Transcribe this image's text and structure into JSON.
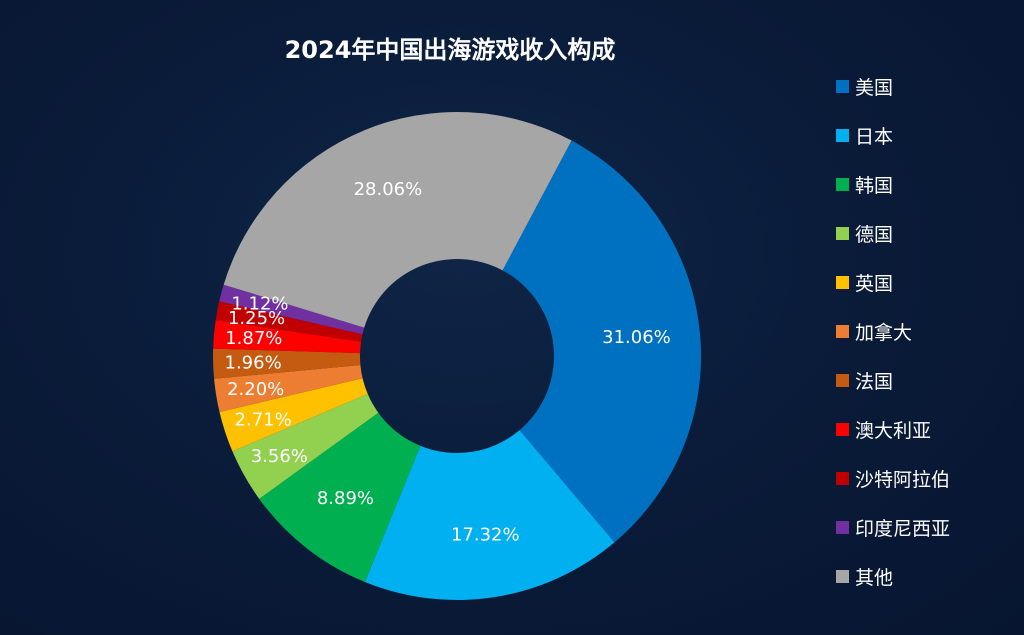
{
  "chart_data": {
    "type": "pie",
    "variant": "donut",
    "title": "2024年中国出海游戏收入构成",
    "unit": "%",
    "legend_position": "right",
    "categories": [
      "美国",
      "日本",
      "韩国",
      "德国",
      "英国",
      "加拿大",
      "法国",
      "澳大利亚",
      "沙特阿拉伯",
      "印度尼西亚",
      "其他"
    ],
    "values": [
      31.06,
      17.32,
      8.89,
      3.56,
      2.71,
      2.2,
      1.96,
      1.87,
      1.25,
      1.12,
      28.06
    ],
    "labels": [
      "31.06%",
      "17.32%",
      "8.89%",
      "3.56%",
      "2.71%",
      "2.20%",
      "1.96%",
      "1.87%",
      "1.25%",
      "1.12%",
      "28.06%"
    ],
    "colors": [
      "#0070c0",
      "#00b0f0",
      "#00b050",
      "#92d050",
      "#ffc000",
      "#ed7d31",
      "#c55a11",
      "#ff0000",
      "#c00000",
      "#7030a0",
      "#a6a6a6"
    ]
  }
}
